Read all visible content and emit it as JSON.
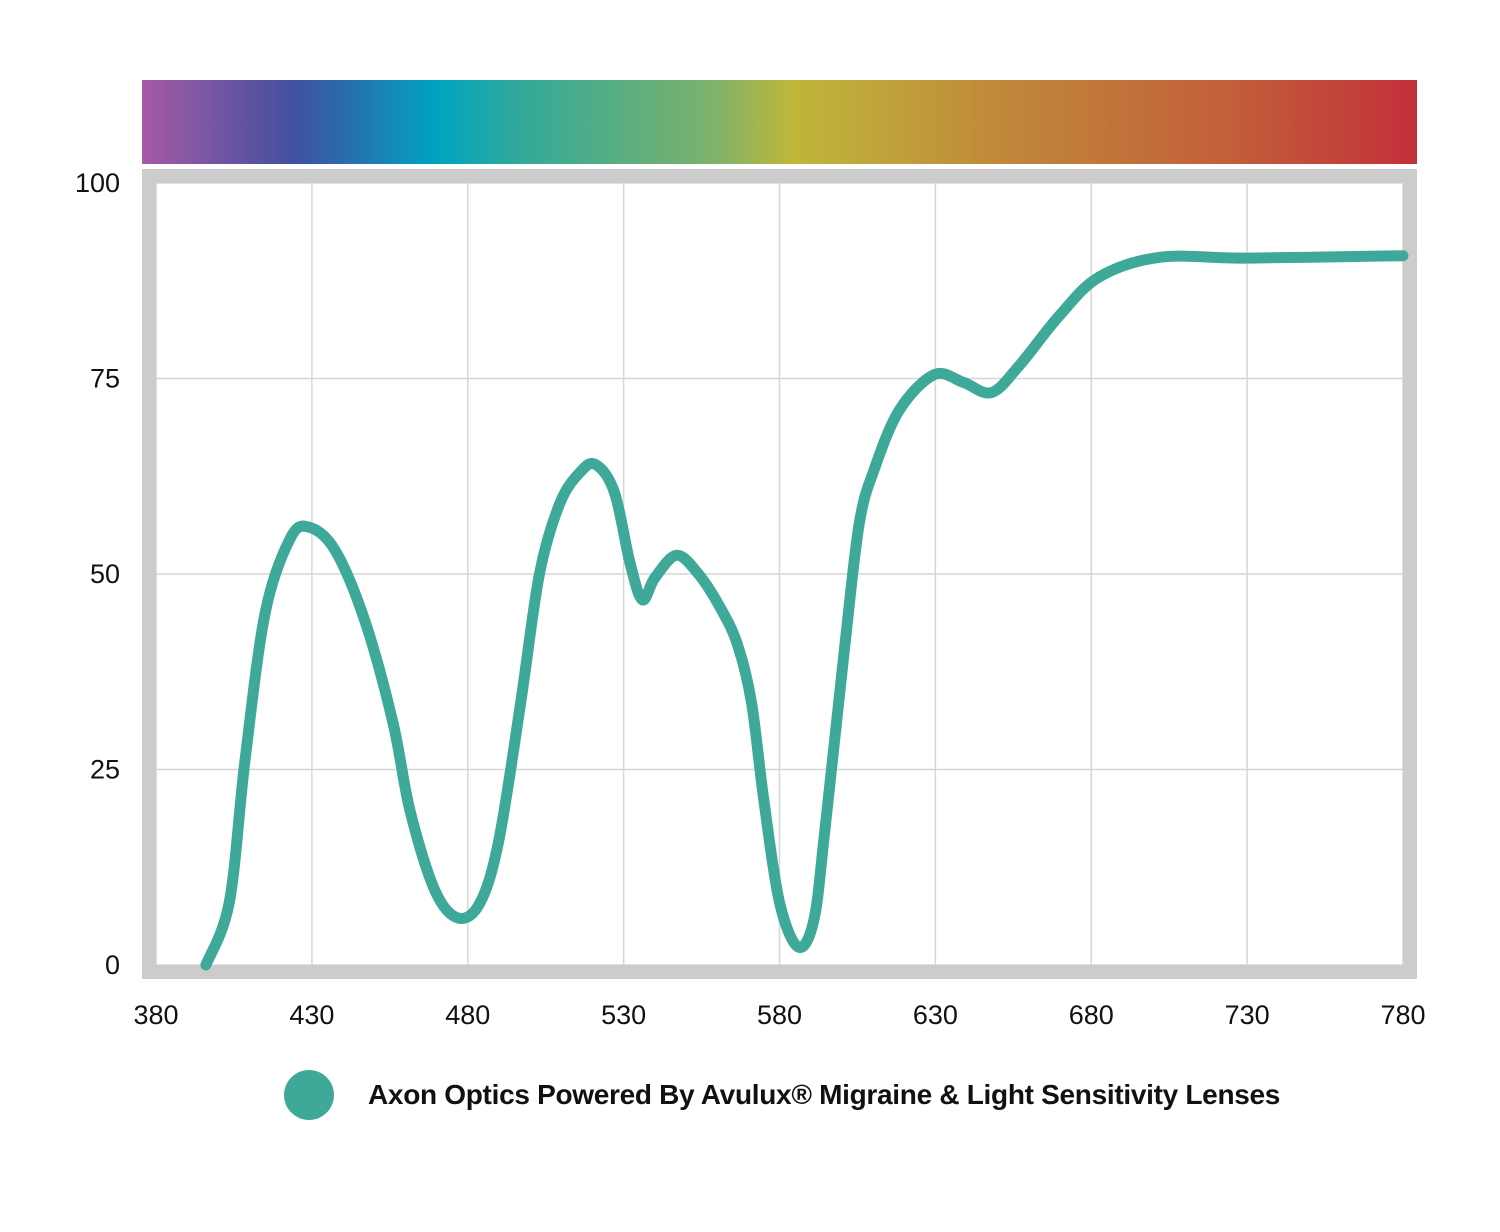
{
  "chart_data": {
    "type": "line",
    "title": "",
    "xlabel": "",
    "ylabel": "",
    "xlim": [
      380,
      780
    ],
    "ylim": [
      0,
      100
    ],
    "x_ticks": [
      "380",
      "430",
      "480",
      "530",
      "580",
      "630",
      "680",
      "730",
      "780"
    ],
    "y_ticks": [
      "0",
      "25",
      "50",
      "75",
      "100"
    ],
    "grid": true,
    "legend_position": "bottom",
    "spectrum_bar": true,
    "series": [
      {
        "name": "Axon Optics Powered By Avulux® Migraine & Light Sensitivity Lenses",
        "color": "#3ea999",
        "x": [
          396,
          403.5,
          408.5,
          415,
          423,
          429,
          437.5,
          447,
          456,
          461.5,
          469.5,
          477,
          484,
          490,
          497,
          503,
          509.5,
          516,
          521,
          527,
          532,
          536,
          540,
          547,
          554,
          561,
          566.5,
          571,
          575,
          580,
          586,
          591,
          594.5,
          601,
          605.6,
          610.5,
          618.5,
          629.7,
          639,
          648,
          657,
          669.7,
          682.6,
          702,
          730.6,
          780
        ],
        "y": [
          0,
          8,
          26,
          45,
          54.5,
          56,
          53,
          44,
          31,
          19.7,
          9.5,
          6,
          8,
          16,
          33.6,
          50,
          59,
          63,
          64,
          60.5,
          51.5,
          46.7,
          49.5,
          52.4,
          50,
          45.7,
          41,
          33.6,
          21,
          8,
          2.3,
          5.7,
          17,
          41,
          56.5,
          63.5,
          71,
          75.5,
          74.5,
          73.2,
          76.7,
          83,
          88,
          90.5,
          90.4,
          90.7
        ]
      }
    ]
  }
}
